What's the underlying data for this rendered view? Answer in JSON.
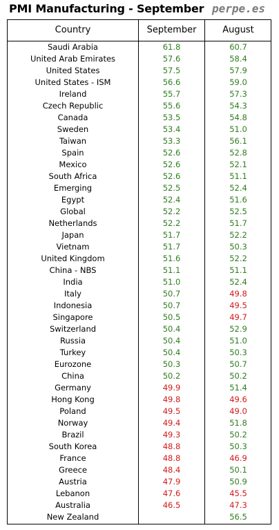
{
  "title": "PMI Manufacturing - September",
  "source": "perpe.es",
  "colors": {
    "above_50": "#2e7d1e",
    "below_50": "#d21a1a"
  },
  "chart_data": {
    "type": "table",
    "title": "PMI Manufacturing - September",
    "columns": [
      "Country",
      "September",
      "August"
    ],
    "threshold": 50,
    "rows": [
      {
        "country": "Saudi Arabia",
        "september": "61.8",
        "august": "60.7"
      },
      {
        "country": "United Arab Emirates",
        "september": "57.6",
        "august": "58.4"
      },
      {
        "country": "United States",
        "september": "57.5",
        "august": "57.9"
      },
      {
        "country": "United States - ISM",
        "september": "56.6",
        "august": "59.0"
      },
      {
        "country": "Ireland",
        "september": "55.7",
        "august": "57.3"
      },
      {
        "country": "Czech Republic",
        "september": "55.6",
        "august": "54.3"
      },
      {
        "country": "Canada",
        "september": "53.5",
        "august": "54.8"
      },
      {
        "country": "Sweden",
        "september": "53.4",
        "august": "51.0"
      },
      {
        "country": "Taiwan",
        "september": "53.3",
        "august": "56.1"
      },
      {
        "country": "Spain",
        "september": "52.6",
        "august": "52.8"
      },
      {
        "country": "Mexico",
        "september": "52.6",
        "august": "52.1"
      },
      {
        "country": "South Africa",
        "september": "52.6",
        "august": "51.1"
      },
      {
        "country": "Emerging",
        "september": "52.5",
        "august": "52.4"
      },
      {
        "country": "Egypt",
        "september": "52.4",
        "august": "51.6"
      },
      {
        "country": "Global",
        "september": "52.2",
        "august": "52.5"
      },
      {
        "country": "Netherlands",
        "september": "52.2",
        "august": "51.7"
      },
      {
        "country": "Japan",
        "september": "51.7",
        "august": "52.2"
      },
      {
        "country": "Vietnam",
        "september": "51.7",
        "august": "50.3"
      },
      {
        "country": "United Kingdom",
        "september": "51.6",
        "august": "52.2"
      },
      {
        "country": "China - NBS",
        "september": "51.1",
        "august": "51.1"
      },
      {
        "country": "India",
        "september": "51.0",
        "august": "52.4"
      },
      {
        "country": "Italy",
        "september": "50.7",
        "august": "49.8"
      },
      {
        "country": "Indonesia",
        "september": "50.7",
        "august": "49.5"
      },
      {
        "country": "Singapore",
        "september": "50.5",
        "august": "49.7"
      },
      {
        "country": "Switzerland",
        "september": "50.4",
        "august": "52.9"
      },
      {
        "country": "Russia",
        "september": "50.4",
        "august": "51.0"
      },
      {
        "country": "Turkey",
        "september": "50.4",
        "august": "50.3"
      },
      {
        "country": "Eurozone",
        "september": "50.3",
        "august": "50.7"
      },
      {
        "country": "China",
        "september": "50.2",
        "august": "50.2"
      },
      {
        "country": "Germany",
        "september": "49.9",
        "august": "51.4"
      },
      {
        "country": "Hong Kong",
        "september": "49.8",
        "august": "49.6"
      },
      {
        "country": "Poland",
        "september": "49.5",
        "august": "49.0"
      },
      {
        "country": "Norway",
        "september": "49.4",
        "august": "51.8"
      },
      {
        "country": "Brazil",
        "september": "49.3",
        "august": "50.2"
      },
      {
        "country": "South Korea",
        "september": "48.8",
        "august": "50.3"
      },
      {
        "country": "France",
        "september": "48.8",
        "august": "46.9"
      },
      {
        "country": "Greece",
        "september": "48.4",
        "august": "50.1"
      },
      {
        "country": "Austria",
        "september": "47.9",
        "august": "50.9"
      },
      {
        "country": "Lebanon",
        "september": "47.6",
        "august": "45.5"
      },
      {
        "country": "Australia",
        "september": "46.5",
        "august": "47.3"
      },
      {
        "country": "New Zealand",
        "september": "",
        "august": "56.5"
      }
    ]
  }
}
